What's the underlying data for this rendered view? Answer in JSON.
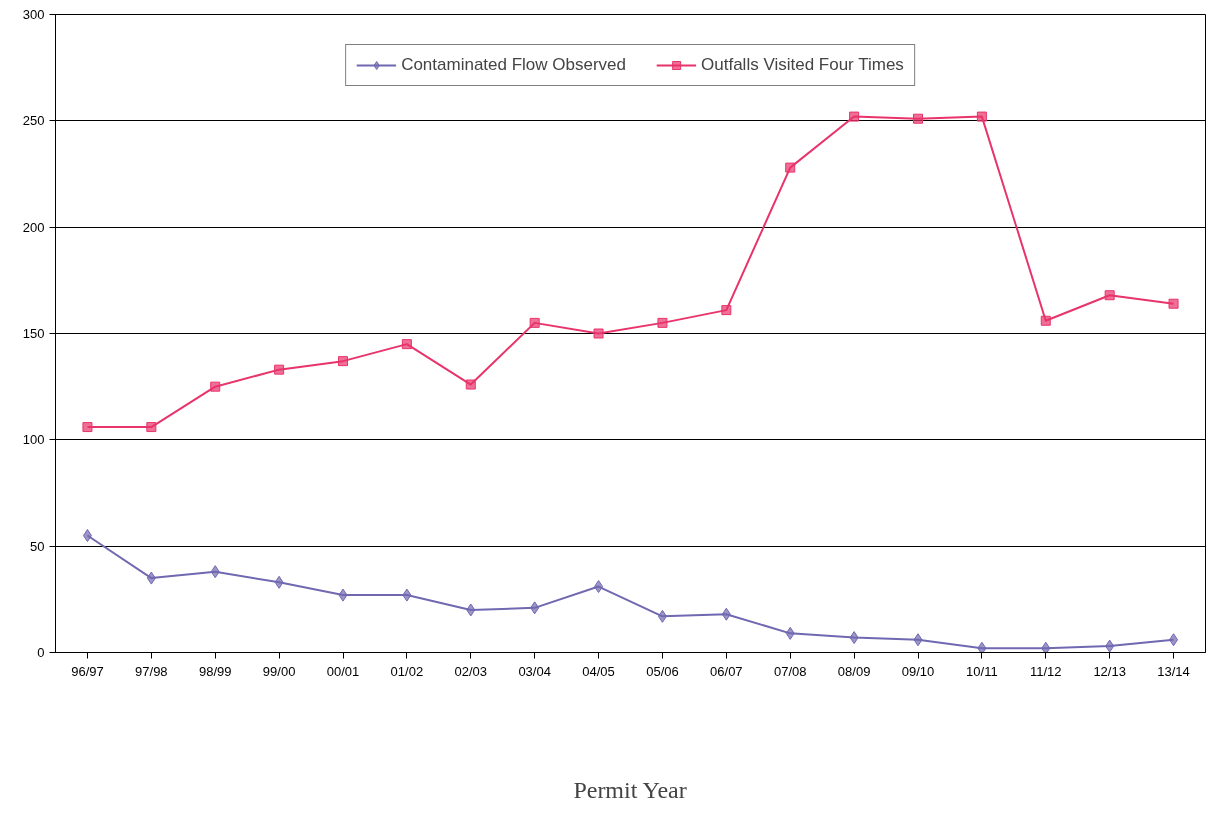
{
  "chart_data": {
    "type": "line",
    "xlabel": "Permit Year",
    "categories": [
      "96/97",
      "97/98",
      "98/99",
      "99/00",
      "00/01",
      "01/02",
      "02/03",
      "03/04",
      "04/05",
      "05/06",
      "06/07",
      "07/08",
      "08/09",
      "09/10",
      "10/11",
      "11/12",
      "12/13",
      "13/14"
    ],
    "series": [
      {
        "name": "Contaminated Flow Observed",
        "color": "#7068b0",
        "marker": "diamond",
        "values": [
          55,
          35,
          38,
          33,
          27,
          27,
          20,
          21,
          31,
          17,
          18,
          9,
          7,
          6,
          2,
          2,
          3,
          6
        ]
      },
      {
        "name": "Outfalls Visited Four Times",
        "color": "#e8336b",
        "marker": "square",
        "values": [
          106,
          106,
          125,
          133,
          137,
          145,
          126,
          155,
          150,
          155,
          161,
          228,
          252,
          251,
          252,
          156,
          168,
          164
        ]
      }
    ],
    "ylim": [
      0,
      300
    ],
    "yticks": [
      0,
      50,
      100,
      150,
      200,
      250,
      300
    ],
    "grid": "y",
    "legend": "top",
    "line_style": "solid"
  }
}
